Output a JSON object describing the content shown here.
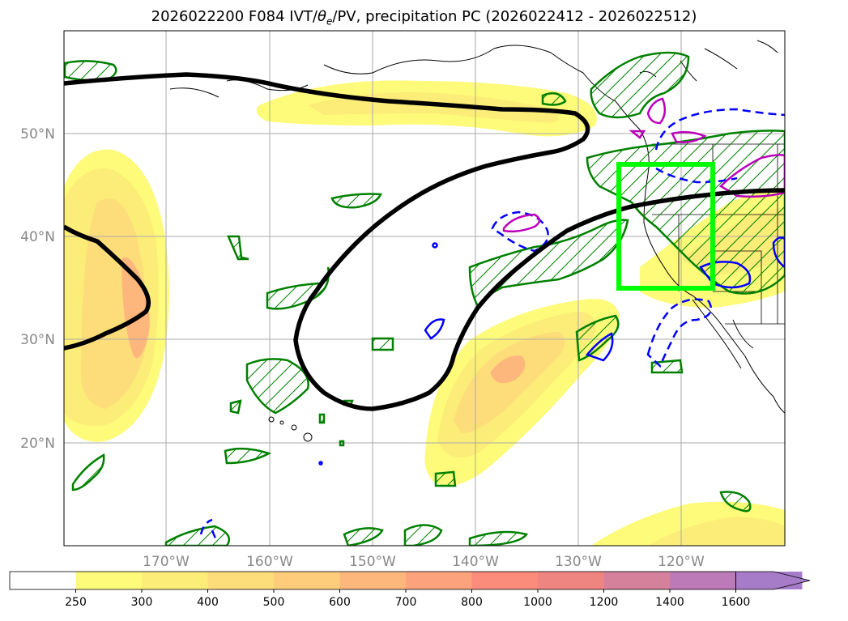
{
  "title": {
    "prefix": "2026022200 F084 IVT/",
    "theta": "θ",
    "theta_sub": "e",
    "suffix": "/PV, precipitation PC (2026022412 - 2026022512)"
  },
  "lat_labels": [
    "50°N",
    "40°N",
    "30°N",
    "20°N"
  ],
  "lon_labels": [
    "170°W",
    "160°W",
    "150°W",
    "140°W",
    "130°W",
    "120°W"
  ],
  "colorbar": {
    "levels": [
      "250",
      "300",
      "400",
      "500",
      "600",
      "700",
      "800",
      "1000",
      "1200",
      "1400",
      "1600"
    ],
    "colors": [
      "#ffffff",
      "#fdfb79",
      "#fcec78",
      "#fddd7a",
      "#fdcd7b",
      "#fdb77c",
      "#fca27c",
      "#fb8c7c",
      "#ef8580",
      "#d6819c",
      "#bd7ab8",
      "#a67cc9"
    ]
  },
  "colors": {
    "ivt_contour": "#000000",
    "precip": "#008000",
    "pv_dashed": "#0000ff",
    "magenta": "#bb00bb",
    "box": "#00ff00"
  }
}
